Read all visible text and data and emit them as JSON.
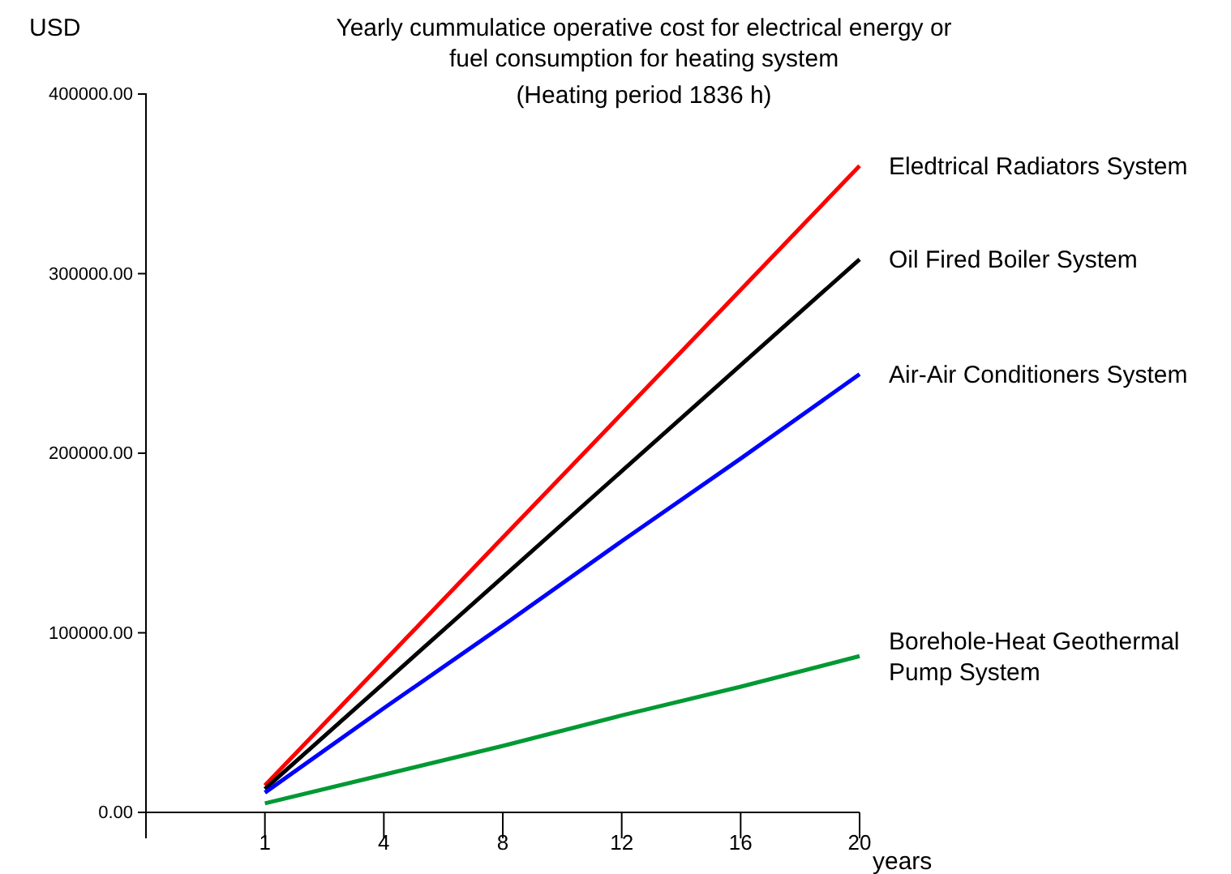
{
  "chart_data": {
    "type": "line",
    "title": "Yearly cummulatice operative cost for electrical energy or fuel consumption for heating system",
    "subtitle": "(Heating period 1836 h)",
    "xlabel": "years",
    "ylabel": "USD",
    "categories": [
      null,
      "1",
      "4",
      "8",
      "12",
      "16",
      "20"
    ],
    "series": [
      {
        "name": "Eledtrical Radiators System",
        "color": "#ff0000",
        "values": [
          null,
          15000,
          84000,
          153000,
          222000,
          291000,
          360000
        ]
      },
      {
        "name": "Oil Fired Boiler System",
        "color": "#000000",
        "values": [
          null,
          13000,
          72000,
          131000,
          190000,
          249000,
          308000
        ]
      },
      {
        "name": "Air-Air Conditioners System",
        "color": "#0000ff",
        "values": [
          null,
          11000,
          58000,
          104000,
          151000,
          197000,
          244000
        ]
      },
      {
        "name": "Borehole-Heat Geothermal Pump System",
        "color": "#009933",
        "values": [
          null,
          5000,
          21000,
          37000,
          54000,
          70000,
          87000
        ]
      }
    ],
    "ylim": [
      0,
      400000
    ],
    "yticks": [
      {
        "value": 0,
        "label": "0.00"
      },
      {
        "value": 100000,
        "label": "100000.00"
      },
      {
        "value": 200000,
        "label": "200000.00"
      },
      {
        "value": 300000,
        "label": "300000.00"
      },
      {
        "value": 400000,
        "label": "400000.00"
      }
    ],
    "grid": false,
    "legend": false,
    "marker": "none",
    "line_style": "solid"
  }
}
